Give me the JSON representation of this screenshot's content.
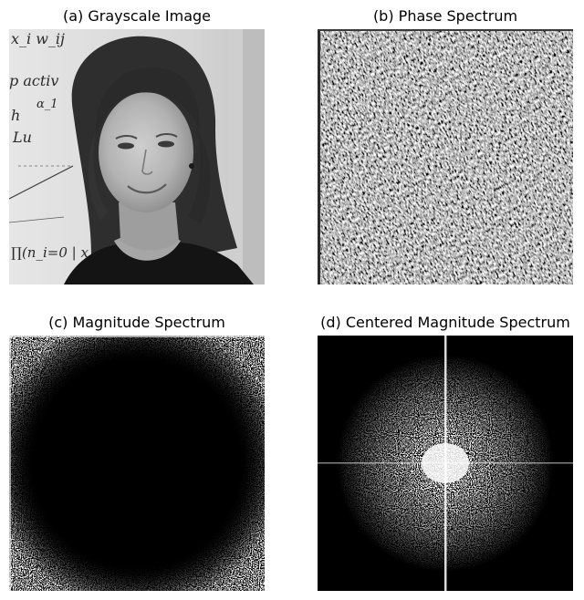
{
  "figure": {
    "panels": [
      {
        "id": "a",
        "title": "(a) Grayscale Image"
      },
      {
        "id": "b",
        "title": "(b) Phase Spectrum"
      },
      {
        "id": "c",
        "title": "(c) Magnitude Spectrum"
      },
      {
        "id": "d",
        "title": "(d) Centered Magnitude Spectrum"
      }
    ],
    "whiteboard_text": [
      "x_i w_ij",
      "p activ",
      "α_1",
      "h",
      "Lu",
      "∏(n_i=0 | x_i)"
    ]
  }
}
